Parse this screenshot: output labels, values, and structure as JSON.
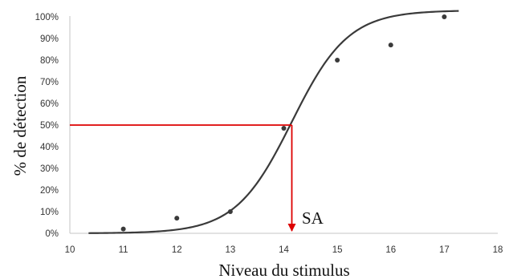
{
  "chart_data": {
    "type": "scatter",
    "title": "",
    "xlabel": "Niveau du stimulus",
    "ylabel": "% de détection",
    "xlim": [
      10,
      18
    ],
    "ylim": [
      0,
      100
    ],
    "x_ticks": [
      "10",
      "11",
      "12",
      "13",
      "14",
      "15",
      "16",
      "17",
      "18"
    ],
    "y_ticks": [
      "0%",
      "10%",
      "20%",
      "30%",
      "40%",
      "50%",
      "60%",
      "70%",
      "80%",
      "90%",
      "100%"
    ],
    "grid": false,
    "points": [
      {
        "x": 11,
        "y": 2
      },
      {
        "x": 12,
        "y": 7
      },
      {
        "x": 13,
        "y": 10
      },
      {
        "x": 14,
        "y": 48.5
      },
      {
        "x": 15,
        "y": 80
      },
      {
        "x": 16,
        "y": 87
      },
      {
        "x": 17,
        "y": 100
      }
    ],
    "fit_curve": {
      "type": "logistic",
      "midpoint": 14.15,
      "slope": 1.9,
      "upper": 103,
      "x_range": [
        10.35,
        17.27
      ]
    },
    "threshold": {
      "label": "SA",
      "y": 50,
      "x": 14.15,
      "color": "#dd0000"
    },
    "colors": {
      "points": "#3a3a3a",
      "curve": "#3a3a3a",
      "axis": "#c4c4c4"
    }
  }
}
